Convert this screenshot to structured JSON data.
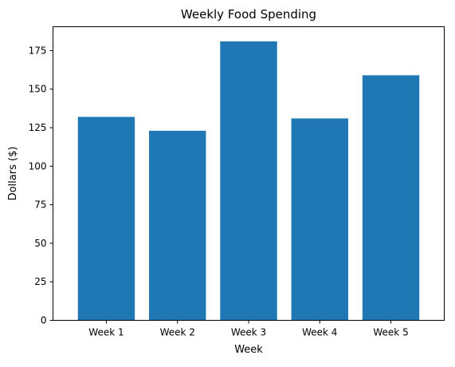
{
  "chart_data": {
    "type": "bar",
    "title": "Weekly Food Spending",
    "xlabel": "Week",
    "ylabel": "Dollars ($)",
    "categories": [
      "Week 1",
      "Week 2",
      "Week 3",
      "Week 4",
      "Week 5"
    ],
    "values": [
      132,
      123,
      181,
      131,
      159
    ],
    "ylim": [
      0,
      190.5
    ],
    "yticks": [
      0,
      25,
      50,
      75,
      100,
      125,
      150,
      175
    ],
    "bar_color": "#1f77b4",
    "grid": false,
    "legend": "none"
  }
}
